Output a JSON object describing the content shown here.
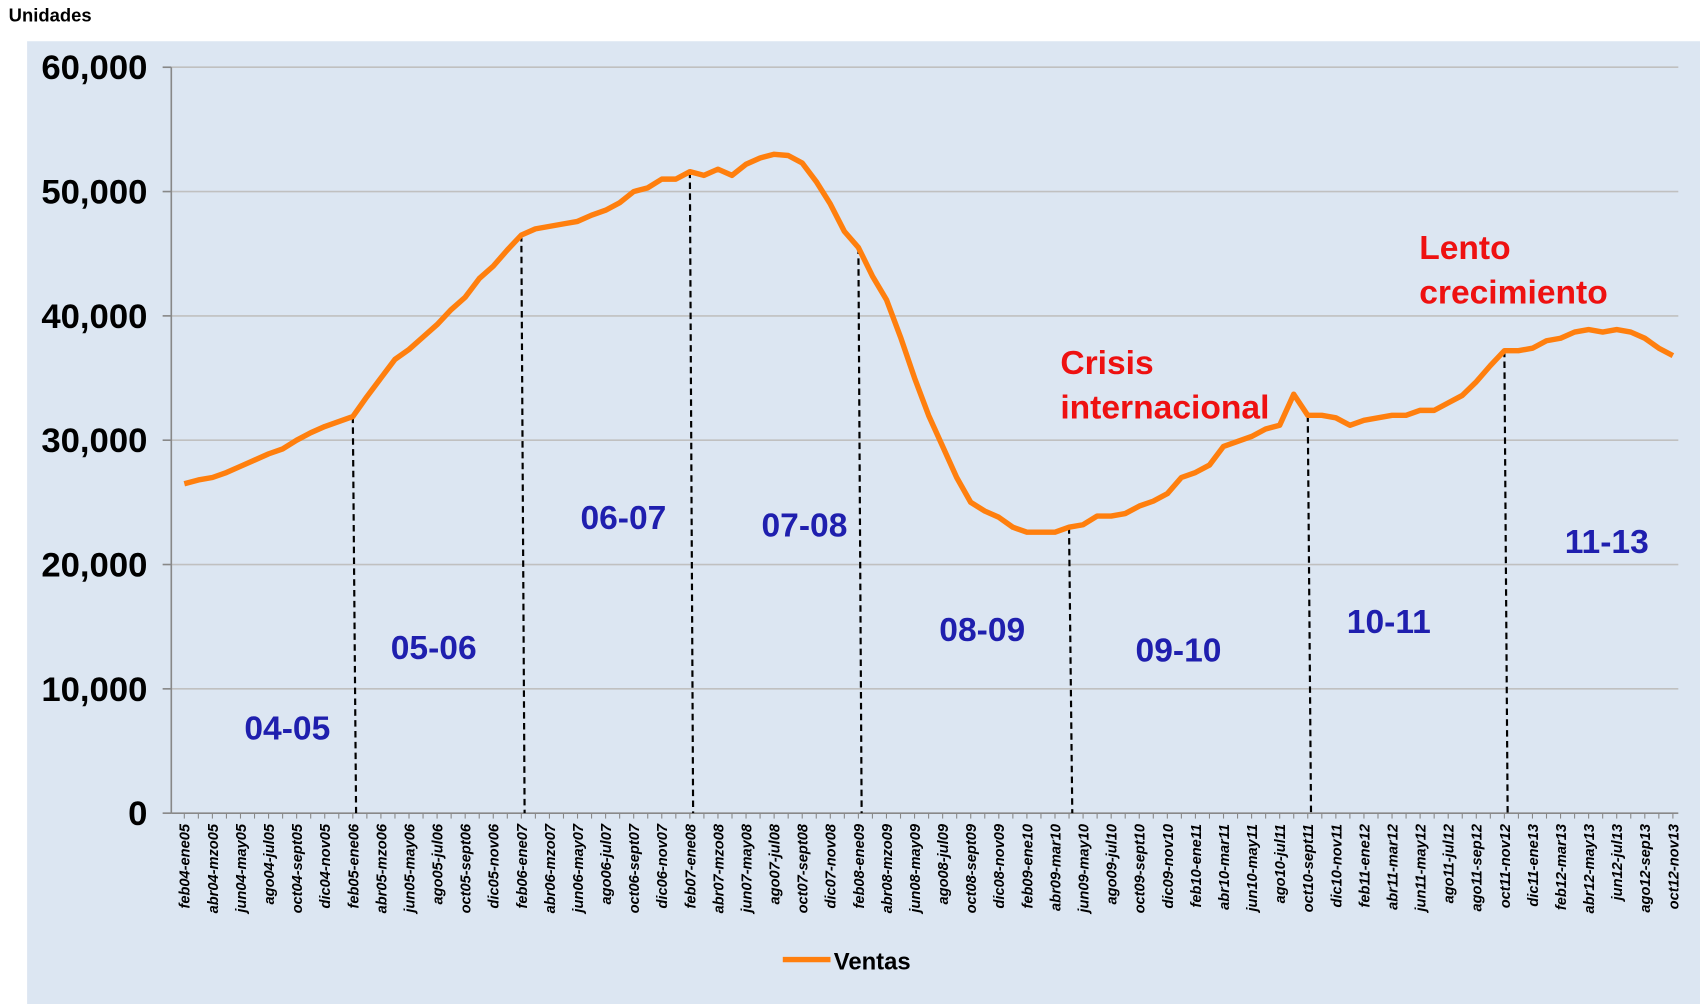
{
  "chart_data": {
    "type": "line",
    "y_axis_label": "Unidades",
    "categories": [
      "feb04-ene05",
      null,
      "abr04-mzo05",
      null,
      "jun04-may05",
      null,
      "ago04-jul05",
      null,
      "oct04-sept05",
      null,
      "dic04-nov05",
      null,
      "feb05-ene06",
      null,
      "abr05-mzo06",
      null,
      "jun05-may06",
      null,
      "ago05-jul06",
      null,
      "oct05-sept06",
      null,
      "dic05-nov06",
      null,
      "feb06-ene07",
      null,
      "abr06-mzo07",
      null,
      "jun06-may07",
      null,
      "ago06-jul07",
      null,
      "oct06-sept07",
      null,
      "dic06-nov07",
      null,
      "feb07-ene08",
      null,
      "abr07-mzo08",
      null,
      "jun07-may08",
      null,
      "ago07-jul08",
      null,
      "oct07-sept08",
      null,
      "dic07-nov08",
      null,
      "feb08-ene09",
      null,
      "abr08-mzo09",
      null,
      "jun08-may09",
      null,
      "ago08-jul09",
      null,
      "oct08-sept09",
      null,
      "dic08-nov09",
      null,
      "feb09-ene10",
      null,
      "abr09-mar10",
      null,
      "jun09-may10",
      null,
      "ago09-jul10",
      null,
      "oct09-sept10",
      null,
      "dic09-nov10",
      null,
      "feb10-ene11",
      null,
      "abr10-mar11",
      null,
      "jun10-may11",
      null,
      "ago10-jul11",
      null,
      "oct10-sept11",
      null,
      "dic10-nov11",
      null,
      "feb11-ene12",
      null,
      "abr11-mar12",
      null,
      "jun11-may12",
      null,
      "ago11-jul12",
      null,
      "ago11-sep12",
      null,
      "oct11-nov12",
      null,
      "dic11-ene13",
      null,
      "feb12-mar13",
      null,
      "abr12-may13",
      null,
      "jun12-jul13",
      null,
      "ago12-sep13",
      null,
      "oct12-nov13"
    ],
    "series": [
      {
        "name": "Ventas",
        "color": "#ff7f0e",
        "values": [
          26500,
          26800,
          27000,
          27400,
          27900,
          28400,
          28900,
          29300,
          30000,
          30600,
          31100,
          31500,
          31900,
          33500,
          35000,
          36500,
          37300,
          38300,
          39300,
          40500,
          41500,
          43000,
          44000,
          45300,
          46500,
          47000,
          47200,
          47400,
          47600,
          48100,
          48500,
          49100,
          50000,
          50300,
          51000,
          51000,
          51600,
          51300,
          51800,
          51300,
          52200,
          52700,
          53000,
          52900,
          52300,
          50800,
          49000,
          46800,
          45500,
          43200,
          41300,
          38300,
          35000,
          32000,
          29500,
          27000,
          25000,
          24300,
          23800,
          23000,
          22600,
          22600,
          22600,
          23000,
          23200,
          23900,
          23900,
          24100,
          24700,
          25100,
          25700,
          27000,
          27400,
          28000,
          29500,
          29900,
          30300,
          30900,
          31200,
          33700,
          32000,
          32000,
          31800,
          31200,
          31600,
          31800,
          32000,
          32000,
          32400,
          32400,
          33000,
          33600,
          34700,
          36000,
          37200,
          37200,
          37400,
          38000,
          38200,
          38700,
          38900,
          38700,
          38900,
          38700,
          38200,
          37400,
          36800
        ]
      }
    ],
    "ylim": [
      0,
      60000
    ],
    "yticks": [
      0,
      {
        "value": 10000,
        "label": "10,000"
      },
      {
        "value": 20000,
        "label": "20,000"
      },
      {
        "value": 30000,
        "label": "30,000"
      },
      {
        "value": 40000,
        "label": "40,000"
      },
      {
        "value": 50000,
        "label": "50,000"
      },
      {
        "value": 60000,
        "label": "60,000"
      }
    ],
    "grid": true,
    "legend": "bottom",
    "period_labels": [
      "04-05",
      "05-06",
      "06-07",
      "07-08",
      "08-09",
      "09-10",
      "10-11",
      "11-13"
    ],
    "annotations": [
      [
        "Crisis",
        "internacional"
      ],
      [
        "Lento",
        "crecimiento"
      ]
    ]
  }
}
